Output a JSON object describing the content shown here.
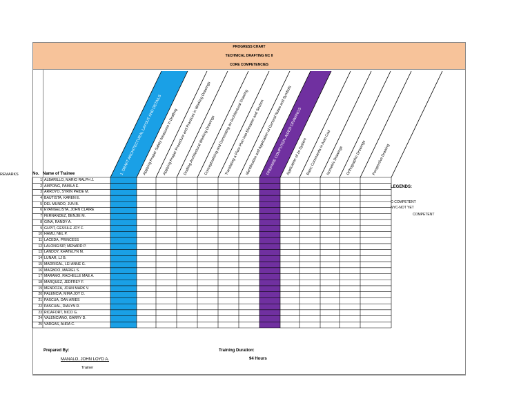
{
  "header": {
    "title": "PROGRESS CHART",
    "program": "TECHNICAL DRAFTING NC II",
    "category": "CORE COMPETENCIES"
  },
  "columns": {
    "no": "No.",
    "name": "Name of Trainee"
  },
  "competencies": [
    {
      "label": "1. DRAFT ARCHITECTURAL LAYOUT AND DETAILS",
      "fill": "#1aa0e6",
      "text_color": "#ffffff"
    },
    {
      "label": "Applying Proper Safety Measures in Drafting",
      "fill": "",
      "text_color": "#000000"
    },
    {
      "label": "Applying Proper Procedure and Practices in Working Drawings",
      "fill": "",
      "text_color": "#000000"
    },
    {
      "label": "Drafting Architectural Working Drawings",
      "fill": "",
      "text_color": "#000000"
    },
    {
      "label": "Conceptualizing and Generating an Architectural Drawing",
      "fill": "",
      "text_color": "#000000"
    },
    {
      "label": "Translating a Floor Plan into Elevation and Section",
      "fill": "",
      "text_color": "#000000"
    },
    {
      "label": "Identification and Application of General Notes and Symbols",
      "fill": "",
      "text_color": "#000000"
    },
    {
      "label": "PREPARE COMPUTER- AIDED DRAWINGS",
      "fill": "#7030a0",
      "text_color": "#ffffff"
    },
    {
      "label": "Application of 2s System",
      "fill": "",
      "text_color": "#000000"
    },
    {
      "label": "Basic Commands in Auto Cad",
      "fill": "",
      "text_color": "#000000"
    },
    {
      "label": "Isometric Drawings",
      "fill": "",
      "text_color": "#000000"
    },
    {
      "label": "Orthographic Drawings",
      "fill": "",
      "text_color": "#000000"
    },
    {
      "label": "Perspective Drawing",
      "fill": "",
      "text_color": "#000000"
    },
    {
      "label": "REMARKS",
      "fill": "#ffff00",
      "text_color": "#000000"
    }
  ],
  "trainees": [
    {
      "no": "1",
      "name": "ALBARILLO, MARIO RALPH J."
    },
    {
      "no": "2",
      "name": "AMPONG, PAMILA E."
    },
    {
      "no": "3",
      "name": "ARROYO, SYRIN PAIDE M."
    },
    {
      "no": "4",
      "name": "BAUTISTA, KAREN E."
    },
    {
      "no": "5",
      "name": "DEL MUNDO, JUN B."
    },
    {
      "no": "6",
      "name": "EVANGELISTA, JOHN CLAIRE"
    },
    {
      "no": "7",
      "name": "FERNANDEZ, BENJIE M."
    },
    {
      "no": "8",
      "name": "GINA, RANDY A."
    },
    {
      "no": "9",
      "name": "GUPIT, GESSILE JOY F."
    },
    {
      "no": "10",
      "name": "HAMU, NEL P."
    },
    {
      "no": "11",
      "name": "LACEDA, PRINCESS"
    },
    {
      "no": "12",
      "name": "LALONGISIP, MENARD P."
    },
    {
      "no": "13",
      "name": "LANDOY, KHATELYN M."
    },
    {
      "no": "14",
      "name": "LUNAR, LJ B."
    },
    {
      "no": "15",
      "name": "MADRIGAL, LEI ANNE G."
    },
    {
      "no": "16",
      "name": "MAGBOO, MARIEL S."
    },
    {
      "no": "17",
      "name": "MARAMO, RACHELLE MAE A."
    },
    {
      "no": "18",
      "name": "MARQUEZ, JEDFREY F."
    },
    {
      "no": "19",
      "name": "MENDOZA, JOHN MARK V."
    },
    {
      "no": "20",
      "name": "PALENCIA, MIRA JOY D."
    },
    {
      "no": "21",
      "name": "PASCUA, DAN ARIES"
    },
    {
      "no": "22",
      "name": "PASCUAL, DIALYN R."
    },
    {
      "no": "23",
      "name": "RICAFORT, NICO G."
    },
    {
      "no": "24",
      "name": "VALENCIANO, GARRY D."
    },
    {
      "no": "25",
      "name": "VARGAS, AHRA C."
    }
  ],
  "legend": {
    "title": "LEGENDS:",
    "c": "C-COMPETENT",
    "nyc": "NYC-NOT YET",
    "nyc2": "COMPETENT"
  },
  "footer": {
    "prepared_label": "Prepared By:",
    "prepared_name": "MANALO, JOHN LOYD A.",
    "prepared_role": "Trainer",
    "duration_label": "Training Duration:",
    "duration_value": "94 Hours"
  }
}
